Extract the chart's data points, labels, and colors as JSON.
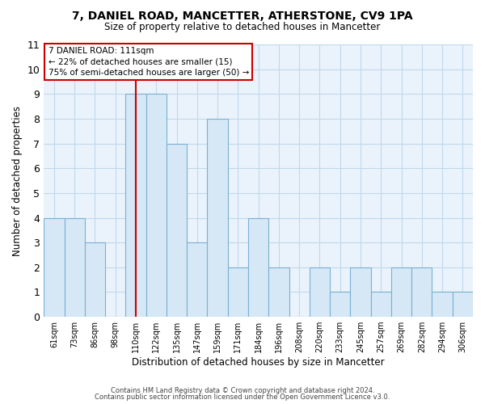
{
  "title1": "7, DANIEL ROAD, MANCETTER, ATHERSTONE, CV9 1PA",
  "title2": "Size of property relative to detached houses in Mancetter",
  "xlabel": "Distribution of detached houses by size in Mancetter",
  "ylabel": "Number of detached properties",
  "bar_labels": [
    "61sqm",
    "73sqm",
    "86sqm",
    "98sqm",
    "110sqm",
    "122sqm",
    "135sqm",
    "147sqm",
    "159sqm",
    "171sqm",
    "184sqm",
    "196sqm",
    "208sqm",
    "220sqm",
    "233sqm",
    "245sqm",
    "257sqm",
    "269sqm",
    "282sqm",
    "294sqm",
    "306sqm"
  ],
  "bar_heights": [
    4,
    4,
    3,
    0,
    9,
    9,
    7,
    3,
    8,
    2,
    4,
    2,
    0,
    2,
    1,
    2,
    1,
    2,
    2,
    1,
    1
  ],
  "bar_fill_color": "#d6e8f5",
  "bar_edge_color": "#7ab0d4",
  "highlight_index": 4,
  "highlight_line_color": "#cc0000",
  "plot_bg_color": "#eaf3fb",
  "ylim": [
    0,
    11
  ],
  "yticks": [
    0,
    1,
    2,
    3,
    4,
    5,
    6,
    7,
    8,
    9,
    10,
    11
  ],
  "annotation_title": "7 DANIEL ROAD: 111sqm",
  "annotation_line1": "← 22% of detached houses are smaller (15)",
  "annotation_line2": "75% of semi-detached houses are larger (50) →",
  "grid_color": "#c0d8ec",
  "footnote1": "Contains HM Land Registry data © Crown copyright and database right 2024.",
  "footnote2": "Contains public sector information licensed under the Open Government Licence v3.0."
}
